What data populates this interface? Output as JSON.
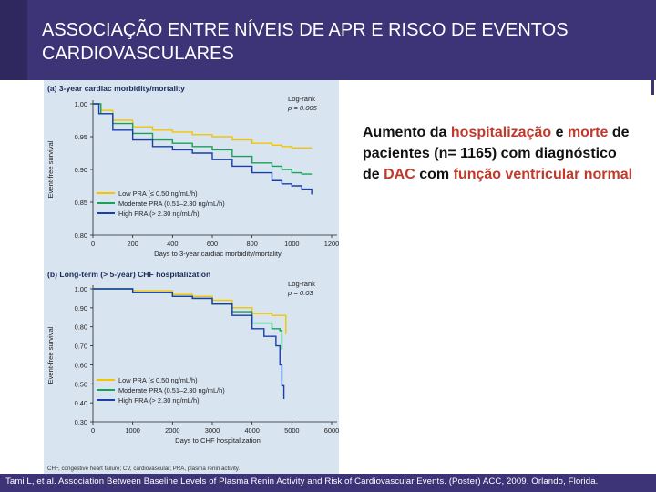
{
  "slide": {
    "title": "ASSOCIAÇÃO ENTRE NÍVEIS DE APR E RISCO DE EVENTOS CARDIOVASCULARES",
    "text": {
      "part1": "Aumento da ",
      "hl1": "hospitalização",
      "part2": " e ",
      "hl2": "morte",
      "part3": " de pacientes (n= 1165) com diagnóstico de ",
      "hl3": "DAC",
      "part4": " com ",
      "hl4": "função ventricular normal"
    },
    "figure_footnote": "CHF, congestive heart failure; CV, cardiovascular; PRA, plasma renin activity.",
    "citation": "Tami L, et al. Association Between Baseline Levels of Plasma Renin Activity and Risk of Cardiovascular Events. (Poster) ACC, 2009. Orlando, Florida."
  },
  "chart_data": [
    {
      "type": "line",
      "title": "(a) 3-year cardiac morbidity/mortality",
      "xlabel": "Days to 3-year cardiac morbidity/mortality",
      "ylabel": "Event-free survival",
      "xlim": [
        0,
        1200
      ],
      "ylim": [
        0.8,
        1.0
      ],
      "xticks": [
        0,
        200,
        400,
        600,
        800,
        1000,
        1200
      ],
      "yticks": [
        0.8,
        0.85,
        0.9,
        0.95,
        1.0
      ],
      "annotation": [
        "Log-rank",
        "p = 0.005"
      ],
      "legend_position": "bottom-left",
      "grid": false,
      "series": [
        {
          "name": "Low PRA (≤ 0.50 ng/mL/h)",
          "color": "#f2c500",
          "points": [
            [
              0,
              1.0
            ],
            [
              40,
              0.99
            ],
            [
              100,
              0.975
            ],
            [
              200,
              0.965
            ],
            [
              300,
              0.96
            ],
            [
              400,
              0.957
            ],
            [
              500,
              0.953
            ],
            [
              600,
              0.95
            ],
            [
              700,
              0.945
            ],
            [
              800,
              0.94
            ],
            [
              900,
              0.937
            ],
            [
              950,
              0.935
            ],
            [
              1000,
              0.933
            ],
            [
              1100,
              0.933
            ]
          ]
        },
        {
          "name": "Moderate PRA (0.51–2.30 ng/mL/h)",
          "color": "#1aa05a",
          "points": [
            [
              0,
              1.0
            ],
            [
              40,
              0.985
            ],
            [
              100,
              0.97
            ],
            [
              200,
              0.955
            ],
            [
              300,
              0.945
            ],
            [
              400,
              0.94
            ],
            [
              500,
              0.935
            ],
            [
              600,
              0.93
            ],
            [
              700,
              0.92
            ],
            [
              800,
              0.91
            ],
            [
              900,
              0.905
            ],
            [
              950,
              0.9
            ],
            [
              1000,
              0.895
            ],
            [
              1050,
              0.893
            ],
            [
              1100,
              0.893
            ]
          ]
        },
        {
          "name": "High PRA (> 2.30 ng/mL/h)",
          "color": "#1a3fa8",
          "points": [
            [
              0,
              1.0
            ],
            [
              30,
              0.985
            ],
            [
              100,
              0.96
            ],
            [
              200,
              0.945
            ],
            [
              300,
              0.935
            ],
            [
              400,
              0.93
            ],
            [
              500,
              0.925
            ],
            [
              600,
              0.915
            ],
            [
              700,
              0.905
            ],
            [
              800,
              0.895
            ],
            [
              900,
              0.883
            ],
            [
              950,
              0.878
            ],
            [
              1000,
              0.875
            ],
            [
              1050,
              0.87
            ],
            [
              1100,
              0.862
            ]
          ]
        }
      ]
    },
    {
      "type": "line",
      "title": "(b) Long-term (> 5-year) CHF hospitalization",
      "xlabel": "Days to CHF hospitalization",
      "ylabel": "Event-free survival",
      "xlim": [
        0,
        6000
      ],
      "ylim": [
        0.3,
        1.0
      ],
      "xticks": [
        0,
        1000,
        2000,
        3000,
        4000,
        5000,
        6000
      ],
      "yticks": [
        0.3,
        0.4,
        0.5,
        0.6,
        0.7,
        0.8,
        0.9,
        1.0
      ],
      "annotation": [
        "Log-rank",
        "p = 0.03"
      ],
      "legend_position": "bottom-left",
      "grid": false,
      "series": [
        {
          "name": "Low PRA (≤ 0.50 ng/mL/h)",
          "color": "#f2c500",
          "points": [
            [
              0,
              1.0
            ],
            [
              1000,
              0.99
            ],
            [
              2000,
              0.97
            ],
            [
              2500,
              0.96
            ],
            [
              3000,
              0.94
            ],
            [
              3500,
              0.9
            ],
            [
              4000,
              0.87
            ],
            [
              4500,
              0.86
            ],
            [
              4800,
              0.86
            ],
            [
              4850,
              0.76
            ]
          ]
        },
        {
          "name": "Moderate PRA (0.51–2.30 ng/mL/h)",
          "color": "#1aa05a",
          "points": [
            [
              0,
              1.0
            ],
            [
              1000,
              0.98
            ],
            [
              2000,
              0.96
            ],
            [
              2500,
              0.95
            ],
            [
              3000,
              0.92
            ],
            [
              3500,
              0.88
            ],
            [
              4000,
              0.82
            ],
            [
              4500,
              0.79
            ],
            [
              4700,
              0.78
            ],
            [
              4750,
              0.68
            ]
          ]
        },
        {
          "name": "High PRA (> 2.30 ng/mL/h)",
          "color": "#1a3fa8",
          "points": [
            [
              0,
              1.0
            ],
            [
              1000,
              0.98
            ],
            [
              2000,
              0.96
            ],
            [
              2500,
              0.95
            ],
            [
              3000,
              0.92
            ],
            [
              3500,
              0.86
            ],
            [
              4000,
              0.79
            ],
            [
              4300,
              0.75
            ],
            [
              4600,
              0.7
            ],
            [
              4700,
              0.6
            ],
            [
              4750,
              0.49
            ],
            [
              4800,
              0.42
            ]
          ]
        }
      ]
    }
  ]
}
